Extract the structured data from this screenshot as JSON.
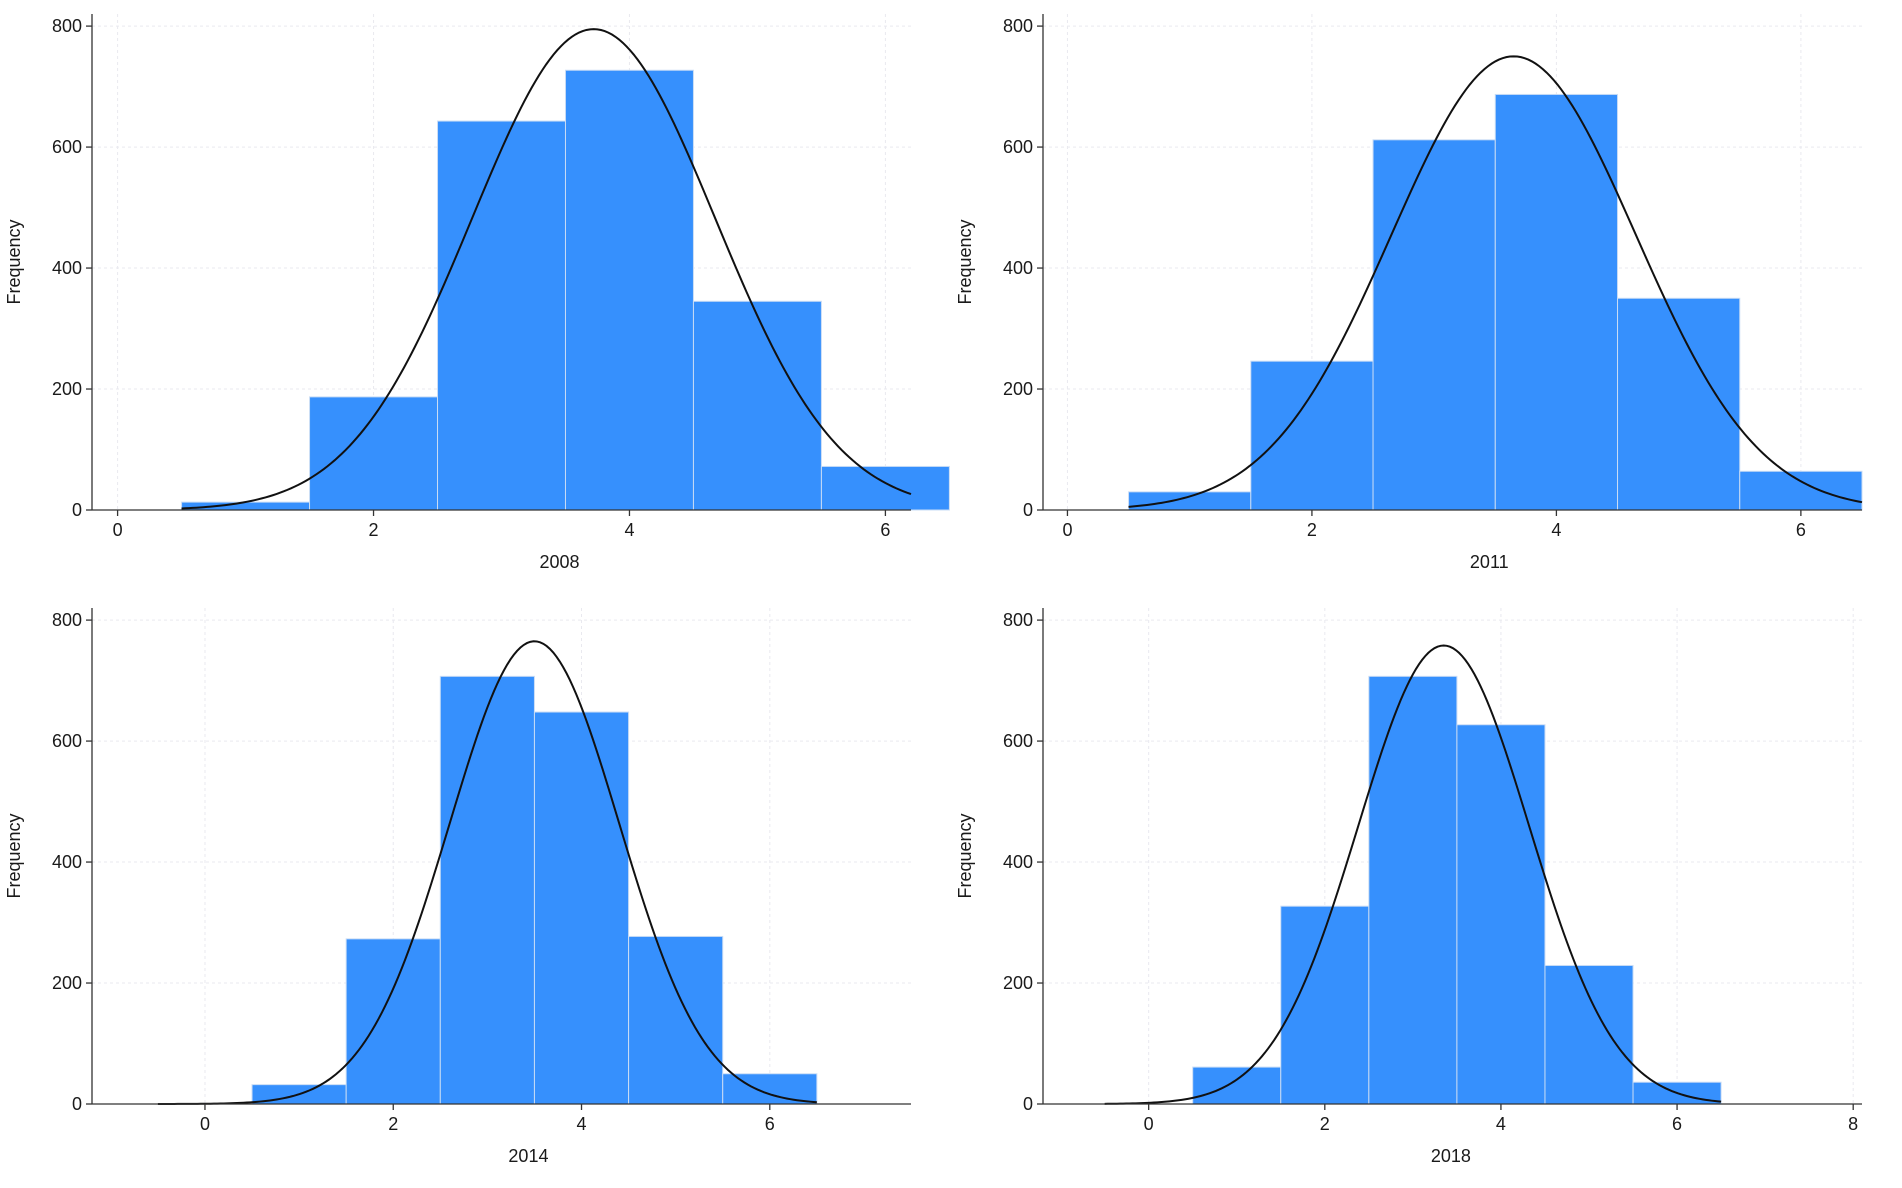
{
  "colors": {
    "bar": "#3690fd",
    "curve": "#111111",
    "axis": "#333333"
  },
  "chart_data": [
    {
      "type": "bar",
      "subtype": "histogram-with-normal-curve",
      "title": "",
      "xlabel": "2008",
      "ylabel": "Frequency",
      "xlim": [
        -0.2,
        6.2
      ],
      "ylim": [
        0,
        820
      ],
      "xticks": [
        0,
        2,
        4,
        6
      ],
      "yticks": [
        0,
        200,
        400,
        600,
        800
      ],
      "bin_width": 1,
      "bins": [
        {
          "center": 1,
          "value": 13
        },
        {
          "center": 2,
          "value": 187
        },
        {
          "center": 3,
          "value": 643
        },
        {
          "center": 4,
          "value": 727
        },
        {
          "center": 5,
          "value": 345
        },
        {
          "center": 6,
          "value": 72
        }
      ],
      "curve": {
        "mean": 3.72,
        "peak": 795,
        "sd": 0.95,
        "x_range": [
          0.5,
          6.2
        ]
      },
      "grid": true
    },
    {
      "type": "bar",
      "subtype": "histogram-with-normal-curve",
      "title": "",
      "xlabel": "2011",
      "ylabel": "Frequency",
      "xlim": [
        -0.2,
        6.5
      ],
      "ylim": [
        0,
        820
      ],
      "xticks": [
        0,
        2,
        4,
        6
      ],
      "yticks": [
        0,
        200,
        400,
        600,
        800
      ],
      "bin_width": 1,
      "bins": [
        {
          "center": 1,
          "value": 30
        },
        {
          "center": 2,
          "value": 246
        },
        {
          "center": 3,
          "value": 612
        },
        {
          "center": 4,
          "value": 687
        },
        {
          "center": 5,
          "value": 350
        },
        {
          "center": 6,
          "value": 64
        }
      ],
      "curve": {
        "mean": 3.65,
        "peak": 750,
        "sd": 1.0,
        "x_range": [
          0.5,
          6.5
        ]
      },
      "grid": true
    },
    {
      "type": "bar",
      "subtype": "histogram-with-normal-curve",
      "title": "",
      "xlabel": "2014",
      "ylabel": "Frequency",
      "xlim": [
        -1.2,
        7.5
      ],
      "ylim": [
        0,
        820
      ],
      "xticks": [
        0,
        2,
        4,
        6
      ],
      "yticks": [
        0,
        200,
        400,
        600,
        800
      ],
      "bin_width": 1,
      "bins": [
        {
          "center": 1,
          "value": 32
        },
        {
          "center": 2,
          "value": 273
        },
        {
          "center": 3,
          "value": 707
        },
        {
          "center": 4,
          "value": 648
        },
        {
          "center": 5,
          "value": 277
        },
        {
          "center": 6,
          "value": 50
        }
      ],
      "curve": {
        "mean": 3.5,
        "peak": 765,
        "sd": 0.9,
        "x_range": [
          -0.5,
          6.5
        ]
      },
      "grid": true
    },
    {
      "type": "bar",
      "subtype": "histogram-with-normal-curve",
      "title": "",
      "xlabel": "2018",
      "ylabel": "Frequency",
      "xlim": [
        -1.2,
        8.1
      ],
      "ylim": [
        0,
        820
      ],
      "xticks": [
        0,
        2,
        4,
        6,
        8
      ],
      "yticks": [
        0,
        200,
        400,
        600,
        800
      ],
      "bin_width": 1,
      "bins": [
        {
          "center": 1,
          "value": 61
        },
        {
          "center": 2,
          "value": 327
        },
        {
          "center": 3,
          "value": 707
        },
        {
          "center": 4,
          "value": 627
        },
        {
          "center": 5,
          "value": 229
        },
        {
          "center": 6,
          "value": 36
        }
      ],
      "curve": {
        "mean": 3.35,
        "peak": 758,
        "sd": 0.97,
        "x_range": [
          -0.5,
          6.5
        ]
      },
      "grid": true
    }
  ]
}
